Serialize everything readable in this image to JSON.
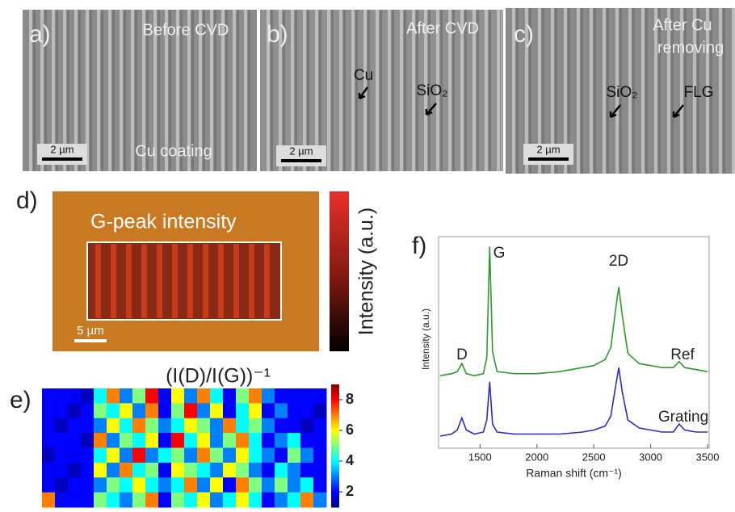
{
  "images": {
    "a": {
      "label": "a)",
      "title": "Before CVD",
      "caption": "Cu coating",
      "scale_bar": "2 µm"
    },
    "b": {
      "label": "b)",
      "title": "After CVD",
      "annotations": [
        "Cu",
        "SiO₂"
      ],
      "scale_bar": "2 µm"
    },
    "c": {
      "label": "c)",
      "title": [
        "After Cu",
        "removing"
      ],
      "annotations": [
        "SiO₂",
        "FLG"
      ],
      "scale_bar": "2 µm"
    },
    "d": {
      "label": "d)",
      "title": "G-peak intensity",
      "colorbar_label": "Intensity (a.u.)",
      "scale_bar": "5 µm"
    }
  },
  "chart_data": [
    {
      "type": "heatmap",
      "label": "e)",
      "title": "(I(D)/I(G))⁻¹",
      "zlim": [
        1,
        9
      ],
      "colorbar_ticks": [
        2,
        4,
        6,
        8
      ],
      "values": [
        [
          2,
          2,
          2,
          1.5,
          4,
          7,
          3,
          5,
          8,
          2,
          6,
          3,
          7,
          4,
          2,
          5,
          7,
          3,
          2,
          2,
          2,
          2
        ],
        [
          2,
          2,
          1.5,
          2,
          5,
          4,
          6,
          3,
          7,
          2,
          5,
          8,
          3,
          6,
          2,
          4,
          6,
          2,
          3,
          2,
          2,
          1.5
        ],
        [
          2,
          1.5,
          2,
          2,
          3,
          6,
          4,
          7,
          5,
          3,
          4,
          6,
          5,
          3,
          7,
          4,
          5,
          3,
          2,
          2,
          1.5,
          2
        ],
        [
          2,
          2,
          2,
          1.5,
          7,
          3,
          5,
          4,
          6,
          2,
          8,
          4,
          6,
          3,
          5,
          7,
          4,
          2,
          3,
          4,
          2,
          2
        ],
        [
          1.5,
          2,
          2,
          2,
          4,
          6,
          3,
          8,
          3,
          4,
          5,
          3,
          7,
          5,
          3,
          6,
          4,
          3,
          2,
          5,
          3,
          2
        ],
        [
          2,
          2,
          1.5,
          2,
          6,
          3,
          7,
          4,
          5,
          2,
          6,
          5,
          4,
          3,
          6,
          5,
          3,
          2,
          4,
          3,
          2,
          2
        ],
        [
          2,
          1.5,
          2,
          2,
          3,
          5,
          4,
          6,
          4,
          3,
          4,
          7,
          3,
          6,
          2,
          7,
          5,
          3,
          5,
          3,
          4,
          2
        ],
        [
          7,
          2,
          2,
          2,
          5,
          4,
          3,
          5,
          7,
          2,
          5,
          4,
          6,
          3,
          4,
          6,
          4,
          2,
          3,
          4,
          7,
          3
        ]
      ]
    },
    {
      "type": "line",
      "label": "f)",
      "xlabel": "Raman shift (cm⁻¹)",
      "ylabel": "Intensity (a.u.)",
      "xlim": [
        1150,
        3500
      ],
      "ylim": [
        0,
        105
      ],
      "xticks": [
        1500,
        2000,
        2500,
        3000,
        3500
      ],
      "annotations": [
        "D",
        "G",
        "2D"
      ],
      "x": [
        1150,
        1250,
        1300,
        1340,
        1380,
        1450,
        1530,
        1560,
        1585,
        1610,
        1650,
        1800,
        2000,
        2200,
        2400,
        2500,
        2600,
        2650,
        2690,
        2720,
        2750,
        2800,
        2900,
        3000,
        3100,
        3200,
        3250,
        3300,
        3400,
        3500
      ],
      "series": [
        {
          "name": "Ref",
          "color": "#2e9a2e",
          "values": [
            36,
            37,
            38,
            42,
            37,
            36,
            37,
            45,
            100,
            48,
            38,
            37,
            37,
            38,
            40,
            41,
            44,
            50,
            68,
            80,
            66,
            47,
            42,
            41,
            40,
            40,
            43,
            40,
            39,
            38
          ]
        },
        {
          "name": "Grating",
          "color": "#2a2ad0",
          "values": [
            6,
            7,
            9,
            15,
            9,
            7,
            8,
            14,
            33,
            12,
            8,
            7,
            7,
            7,
            8,
            9,
            11,
            16,
            30,
            40,
            28,
            14,
            10,
            9,
            8,
            8,
            12,
            9,
            8,
            8
          ]
        }
      ]
    }
  ]
}
